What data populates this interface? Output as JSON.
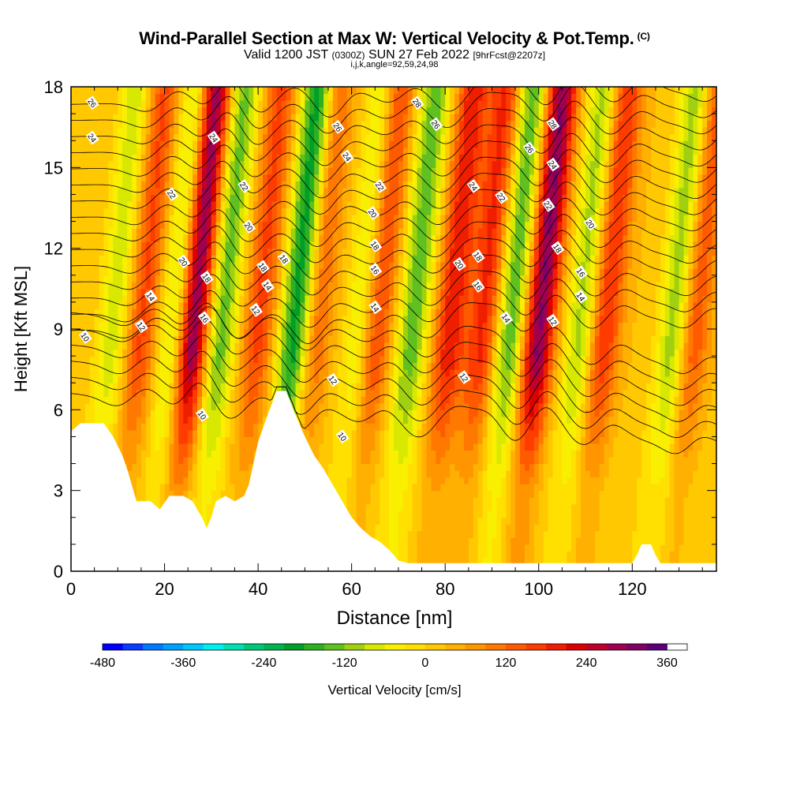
{
  "header": {
    "title": "Wind-Parallel Section at Max W: Vertical Velocity & Pot.Temp.",
    "copyright": "(C)",
    "valid_prefix": "Valid 1200 JST",
    "valid_utc": "(0300Z)",
    "valid_date": "SUN 27 Feb 2022",
    "forecast": "[9hrFcst@2207z]",
    "indices": "i,j,k,angle=92,59,24,98"
  },
  "chart_data": {
    "type": "heatmap",
    "xlabel": "Distance [nm]",
    "ylabel": "Height [Kft MSL]",
    "xlim": [
      0,
      138
    ],
    "ylim": [
      0,
      18
    ],
    "x_ticks": [
      "0",
      "20",
      "40",
      "60",
      "80",
      "100",
      "120"
    ],
    "y_ticks": [
      "0",
      "3",
      "6",
      "9",
      "12",
      "15",
      "18"
    ],
    "colorbar": {
      "label": "Vertical Velocity [cm/s]",
      "range": [
        -480,
        390
      ],
      "step": 30,
      "tick_labels": [
        "-480",
        "-360",
        "-240",
        "-120",
        "0",
        "120",
        "240",
        "360"
      ],
      "colors": [
        "#0000ff",
        "#0a3cff",
        "#0078ff",
        "#00a0ff",
        "#00c8ff",
        "#00f0f0",
        "#00e0b0",
        "#00c878",
        "#00b450",
        "#00a028",
        "#30b020",
        "#60c020",
        "#a0d010",
        "#d8e800",
        "#f8f000",
        "#ffe000",
        "#ffc800",
        "#ffb000",
        "#ff9600",
        "#ff7800",
        "#ff5a00",
        "#ff3c00",
        "#f01e00",
        "#dc0000",
        "#c00028",
        "#a00050",
        "#800064",
        "#5a0078"
      ]
    },
    "terrain_kft": [
      [
        0,
        5.2
      ],
      [
        2,
        5.5
      ],
      [
        7,
        5.5
      ],
      [
        9,
        5.0
      ],
      [
        11,
        4.3
      ],
      [
        12,
        3.8
      ],
      [
        13,
        3.2
      ],
      [
        14,
        2.6
      ],
      [
        17,
        2.6
      ],
      [
        19,
        2.3
      ],
      [
        21,
        2.8
      ],
      [
        24,
        2.8
      ],
      [
        26,
        2.6
      ],
      [
        28,
        2.0
      ],
      [
        29,
        1.6
      ],
      [
        30,
        2.0
      ],
      [
        31,
        2.6
      ],
      [
        33,
        2.8
      ],
      [
        35,
        2.6
      ],
      [
        37,
        2.8
      ],
      [
        38,
        3.2
      ],
      [
        39,
        4.0
      ],
      [
        40,
        4.8
      ],
      [
        42,
        5.8
      ],
      [
        44,
        6.7
      ],
      [
        46,
        6.7
      ],
      [
        48,
        5.8
      ],
      [
        50,
        5.0
      ],
      [
        52,
        4.3
      ],
      [
        54,
        3.8
      ],
      [
        56,
        3.2
      ],
      [
        58,
        2.6
      ],
      [
        60,
        2.0
      ],
      [
        62,
        1.6
      ],
      [
        64,
        1.3
      ],
      [
        66,
        1.1
      ],
      [
        68,
        0.8
      ],
      [
        70,
        0.4
      ],
      [
        72,
        0.3
      ],
      [
        120,
        0.3
      ],
      [
        121,
        0.6
      ],
      [
        122,
        1.0
      ],
      [
        124,
        1.0
      ],
      [
        125,
        0.6
      ],
      [
        126,
        0.3
      ],
      [
        138,
        0.3
      ]
    ],
    "updrafts": [
      {
        "x": 14,
        "amp": 0.45
      },
      {
        "x": 25,
        "amp": 1.0
      },
      {
        "x": 39,
        "amp": 0.45
      },
      {
        "x": 51,
        "amp": 0.4
      },
      {
        "x": 64,
        "amp": 0.55
      },
      {
        "x": 80,
        "amp": 0.6
      },
      {
        "x": 87,
        "amp": 0.55
      },
      {
        "x": 99,
        "amp": 0.95
      },
      {
        "x": 113,
        "amp": 0.55
      },
      {
        "x": 132,
        "amp": 0.45
      }
    ],
    "downdrafts": [
      {
        "x": 8,
        "amp": 0.35
      },
      {
        "x": 21,
        "amp": 0.45
      },
      {
        "x": 31,
        "amp": 0.55
      },
      {
        "x": 47,
        "amp": 0.8
      },
      {
        "x": 61,
        "amp": 0.4
      },
      {
        "x": 72,
        "amp": 0.55
      },
      {
        "x": 93,
        "amp": 0.6
      },
      {
        "x": 108,
        "amp": 0.45
      },
      {
        "x": 128,
        "amp": 0.5
      }
    ],
    "isentropes": [
      {
        "level": 10,
        "base_kft": 5.6
      },
      {
        "level": 11,
        "base_kft": 6.2
      },
      {
        "level": 12,
        "base_kft": 6.8
      },
      {
        "level": 13,
        "base_kft": 7.4
      },
      {
        "level": 14,
        "base_kft": 8.0
      },
      {
        "level": 15,
        "base_kft": 8.6
      },
      {
        "level": 16,
        "base_kft": 9.2
      },
      {
        "level": 17,
        "base_kft": 9.8
      },
      {
        "level": 18,
        "base_kft": 10.4
      },
      {
        "level": 19,
        "base_kft": 11.0
      },
      {
        "level": 20,
        "base_kft": 11.6
      },
      {
        "level": 21,
        "base_kft": 12.2
      },
      {
        "level": 22,
        "base_kft": 12.8
      },
      {
        "level": 23,
        "base_kft": 13.4
      },
      {
        "level": 24,
        "base_kft": 14.0
      },
      {
        "level": 25,
        "base_kft": 14.6
      },
      {
        "level": 26,
        "base_kft": 15.2
      },
      {
        "level": 27,
        "base_kft": 15.8
      },
      {
        "level": 28,
        "base_kft": 16.4
      },
      {
        "level": 29,
        "base_kft": 17.0
      },
      {
        "level": 30,
        "base_kft": 17.6
      }
    ],
    "contour_labels": [
      {
        "text": "26",
        "x": 4.5,
        "y": 17.4
      },
      {
        "text": "24",
        "x": 4.5,
        "y": 16.1
      },
      {
        "text": "24",
        "x": 30.5,
        "y": 16.1
      },
      {
        "text": "22",
        "x": 21.5,
        "y": 14.0
      },
      {
        "text": "22",
        "x": 37,
        "y": 14.3
      },
      {
        "text": "20",
        "x": 38,
        "y": 12.8
      },
      {
        "text": "20",
        "x": 24,
        "y": 11.5
      },
      {
        "text": "18",
        "x": 29,
        "y": 10.9
      },
      {
        "text": "18",
        "x": 41,
        "y": 11.3
      },
      {
        "text": "18",
        "x": 45.5,
        "y": 11.6
      },
      {
        "text": "16",
        "x": 28.5,
        "y": 9.4
      },
      {
        "text": "14",
        "x": 17,
        "y": 10.2
      },
      {
        "text": "14",
        "x": 42,
        "y": 10.6
      },
      {
        "text": "12",
        "x": 15,
        "y": 9.1
      },
      {
        "text": "12",
        "x": 39.5,
        "y": 9.7
      },
      {
        "text": "10",
        "x": 3,
        "y": 8.7
      },
      {
        "text": "10",
        "x": 28,
        "y": 5.8
      },
      {
        "text": "12",
        "x": 56,
        "y": 7.1
      },
      {
        "text": "10",
        "x": 58,
        "y": 5.0
      },
      {
        "text": "26",
        "x": 57,
        "y": 16.5
      },
      {
        "text": "24",
        "x": 59,
        "y": 15.4
      },
      {
        "text": "22",
        "x": 66,
        "y": 14.3
      },
      {
        "text": "20",
        "x": 64.5,
        "y": 13.3
      },
      {
        "text": "18",
        "x": 65,
        "y": 12.1
      },
      {
        "text": "16",
        "x": 65,
        "y": 11.2
      },
      {
        "text": "14",
        "x": 65,
        "y": 9.8
      },
      {
        "text": "28",
        "x": 74,
        "y": 17.4
      },
      {
        "text": "26",
        "x": 78,
        "y": 16.6
      },
      {
        "text": "24",
        "x": 86,
        "y": 14.3
      },
      {
        "text": "20",
        "x": 83,
        "y": 11.4
      },
      {
        "text": "18",
        "x": 87,
        "y": 11.7
      },
      {
        "text": "16",
        "x": 87,
        "y": 10.6
      },
      {
        "text": "12",
        "x": 84,
        "y": 7.2
      },
      {
        "text": "22",
        "x": 92,
        "y": 13.9
      },
      {
        "text": "14",
        "x": 93,
        "y": 9.4
      },
      {
        "text": "26",
        "x": 98,
        "y": 15.7
      },
      {
        "text": "28",
        "x": 103,
        "y": 16.6
      },
      {
        "text": "24",
        "x": 103,
        "y": 15.1
      },
      {
        "text": "22",
        "x": 102,
        "y": 13.6
      },
      {
        "text": "18",
        "x": 104,
        "y": 12.0
      },
      {
        "text": "16",
        "x": 109,
        "y": 11.1
      },
      {
        "text": "14",
        "x": 109,
        "y": 10.2
      },
      {
        "text": "12",
        "x": 103,
        "y": 9.3
      },
      {
        "text": "20",
        "x": 111,
        "y": 12.9
      }
    ]
  }
}
